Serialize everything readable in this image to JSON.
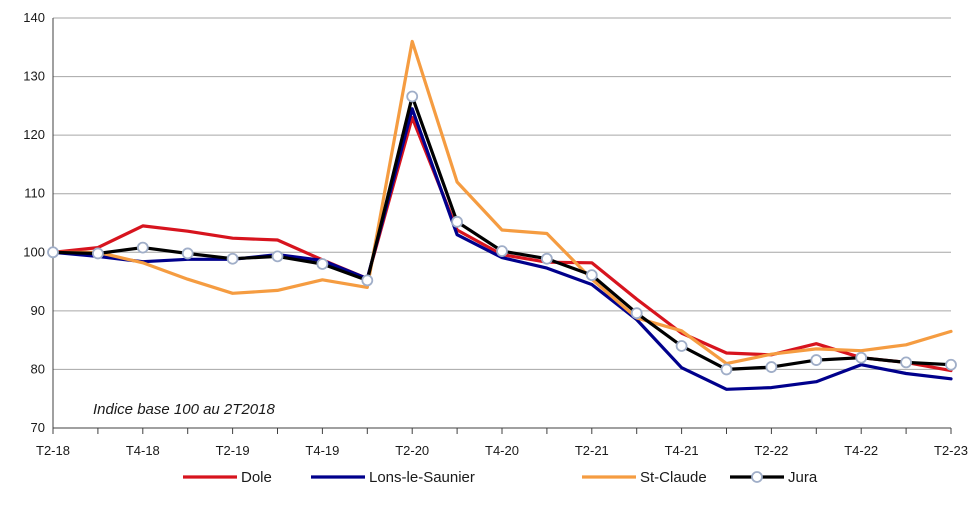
{
  "chart_data": {
    "type": "line",
    "x": [
      "T2-18",
      "T3-18",
      "T4-18",
      "T1-19",
      "T2-19",
      "T3-19",
      "T4-19",
      "T1-20",
      "T2-20",
      "T3-20",
      "T4-20",
      "T1-21",
      "T2-21",
      "T3-21",
      "T4-21",
      "T1-22",
      "T2-22",
      "T3-22",
      "T4-22",
      "T1-23",
      "T2-23"
    ],
    "x_tick_labels": [
      "T2-18",
      "T4-18",
      "T2-19",
      "T4-19",
      "T2-20",
      "T4-20",
      "T2-21",
      "T4-21",
      "T2-22",
      "T4-22",
      "T2-23"
    ],
    "y_ticks": [
      70,
      80,
      90,
      100,
      110,
      120,
      130,
      140
    ],
    "ylim": [
      70,
      140
    ],
    "grid": true,
    "annotation": "Indice base 100 au 2T2018",
    "legend_position": "bottom",
    "series": [
      {
        "name": "Dole",
        "color": "#d7141e",
        "marker": false,
        "values": [
          100,
          100.8,
          104.5,
          103.6,
          102.4,
          102.1,
          98.7,
          95.5,
          123,
          103.8,
          99.6,
          98.3,
          98.2,
          92,
          86.2,
          82.8,
          82.5,
          84.4,
          82,
          81.2,
          79.8
        ]
      },
      {
        "name": "Lons-le-Saunier",
        "color": "#00008c",
        "marker": false,
        "values": [
          100,
          99.3,
          98.4,
          98.8,
          98.8,
          99.6,
          98.6,
          95.5,
          124.5,
          103,
          99.1,
          97.3,
          94.5,
          88.5,
          80.3,
          76.6,
          76.9,
          77.9,
          80.8,
          79.3,
          78.4
        ]
      },
      {
        "name": "St-Claude",
        "color": "#f59c41",
        "marker": false,
        "values": [
          100,
          100,
          98.2,
          95.4,
          93,
          93.5,
          95.3,
          94,
          136,
          112,
          103.8,
          103.2,
          95.4,
          88.8,
          86.6,
          81,
          82.6,
          83.5,
          83.2,
          84.2,
          86.5
        ]
      },
      {
        "name": "Jura",
        "color": "#000000",
        "marker": true,
        "marker_fill": "#ffffff",
        "marker_stroke": "#a0aec8",
        "values": [
          100,
          99.8,
          100.8,
          99.8,
          98.9,
          99.3,
          98,
          95.2,
          126.6,
          105.2,
          100.2,
          98.9,
          96.1,
          89.6,
          84,
          80,
          80.4,
          81.6,
          82,
          81.2,
          80.8
        ]
      }
    ]
  }
}
